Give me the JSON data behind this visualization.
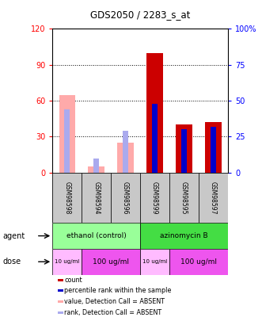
{
  "title": "GDS2050 / 2283_s_at",
  "samples": [
    "GSM98598",
    "GSM98594",
    "GSM98596",
    "GSM98599",
    "GSM98595",
    "GSM98597"
  ],
  "count_values": [
    0,
    0,
    0,
    100,
    40,
    42
  ],
  "percentile_rank": [
    0,
    0,
    0,
    48,
    30,
    32
  ],
  "absent_value": [
    65,
    5,
    25,
    0,
    0,
    0
  ],
  "absent_rank": [
    44,
    10,
    29,
    0,
    0,
    0
  ],
  "is_absent": [
    true,
    true,
    true,
    false,
    false,
    false
  ],
  "agent_labels": [
    "ethanol (control)",
    "azinomycin B"
  ],
  "dose_groups": [
    {
      "label": "10 ug/ml",
      "start": 0,
      "end": 1,
      "color": "#ffbbff"
    },
    {
      "label": "100 ug/ml",
      "start": 1,
      "end": 3,
      "color": "#ee55ee"
    },
    {
      "label": "10 ug/ml",
      "start": 3,
      "end": 4,
      "color": "#ffbbff"
    },
    {
      "label": "100 ug/ml",
      "start": 4,
      "end": 6,
      "color": "#ee55ee"
    }
  ],
  "ylim_left": [
    0,
    120
  ],
  "ylim_right": [
    0,
    100
  ],
  "yticks_left": [
    0,
    30,
    60,
    90,
    120
  ],
  "yticks_right": [
    0,
    25,
    50,
    75,
    100
  ],
  "color_count": "#cc0000",
  "color_percentile": "#0000cc",
  "color_absent_value": "#ffaaaa",
  "color_absent_rank": "#aaaaee",
  "color_agent_ethanol": "#99ff99",
  "color_agent_azinomycin": "#44dd44",
  "color_sample_bg": "#c8c8c8",
  "legend_items": [
    {
      "color": "#cc0000",
      "label": "count"
    },
    {
      "color": "#0000cc",
      "label": "percentile rank within the sample"
    },
    {
      "color": "#ffaaaa",
      "label": "value, Detection Call = ABSENT"
    },
    {
      "color": "#aaaaee",
      "label": "rank, Detection Call = ABSENT"
    }
  ]
}
